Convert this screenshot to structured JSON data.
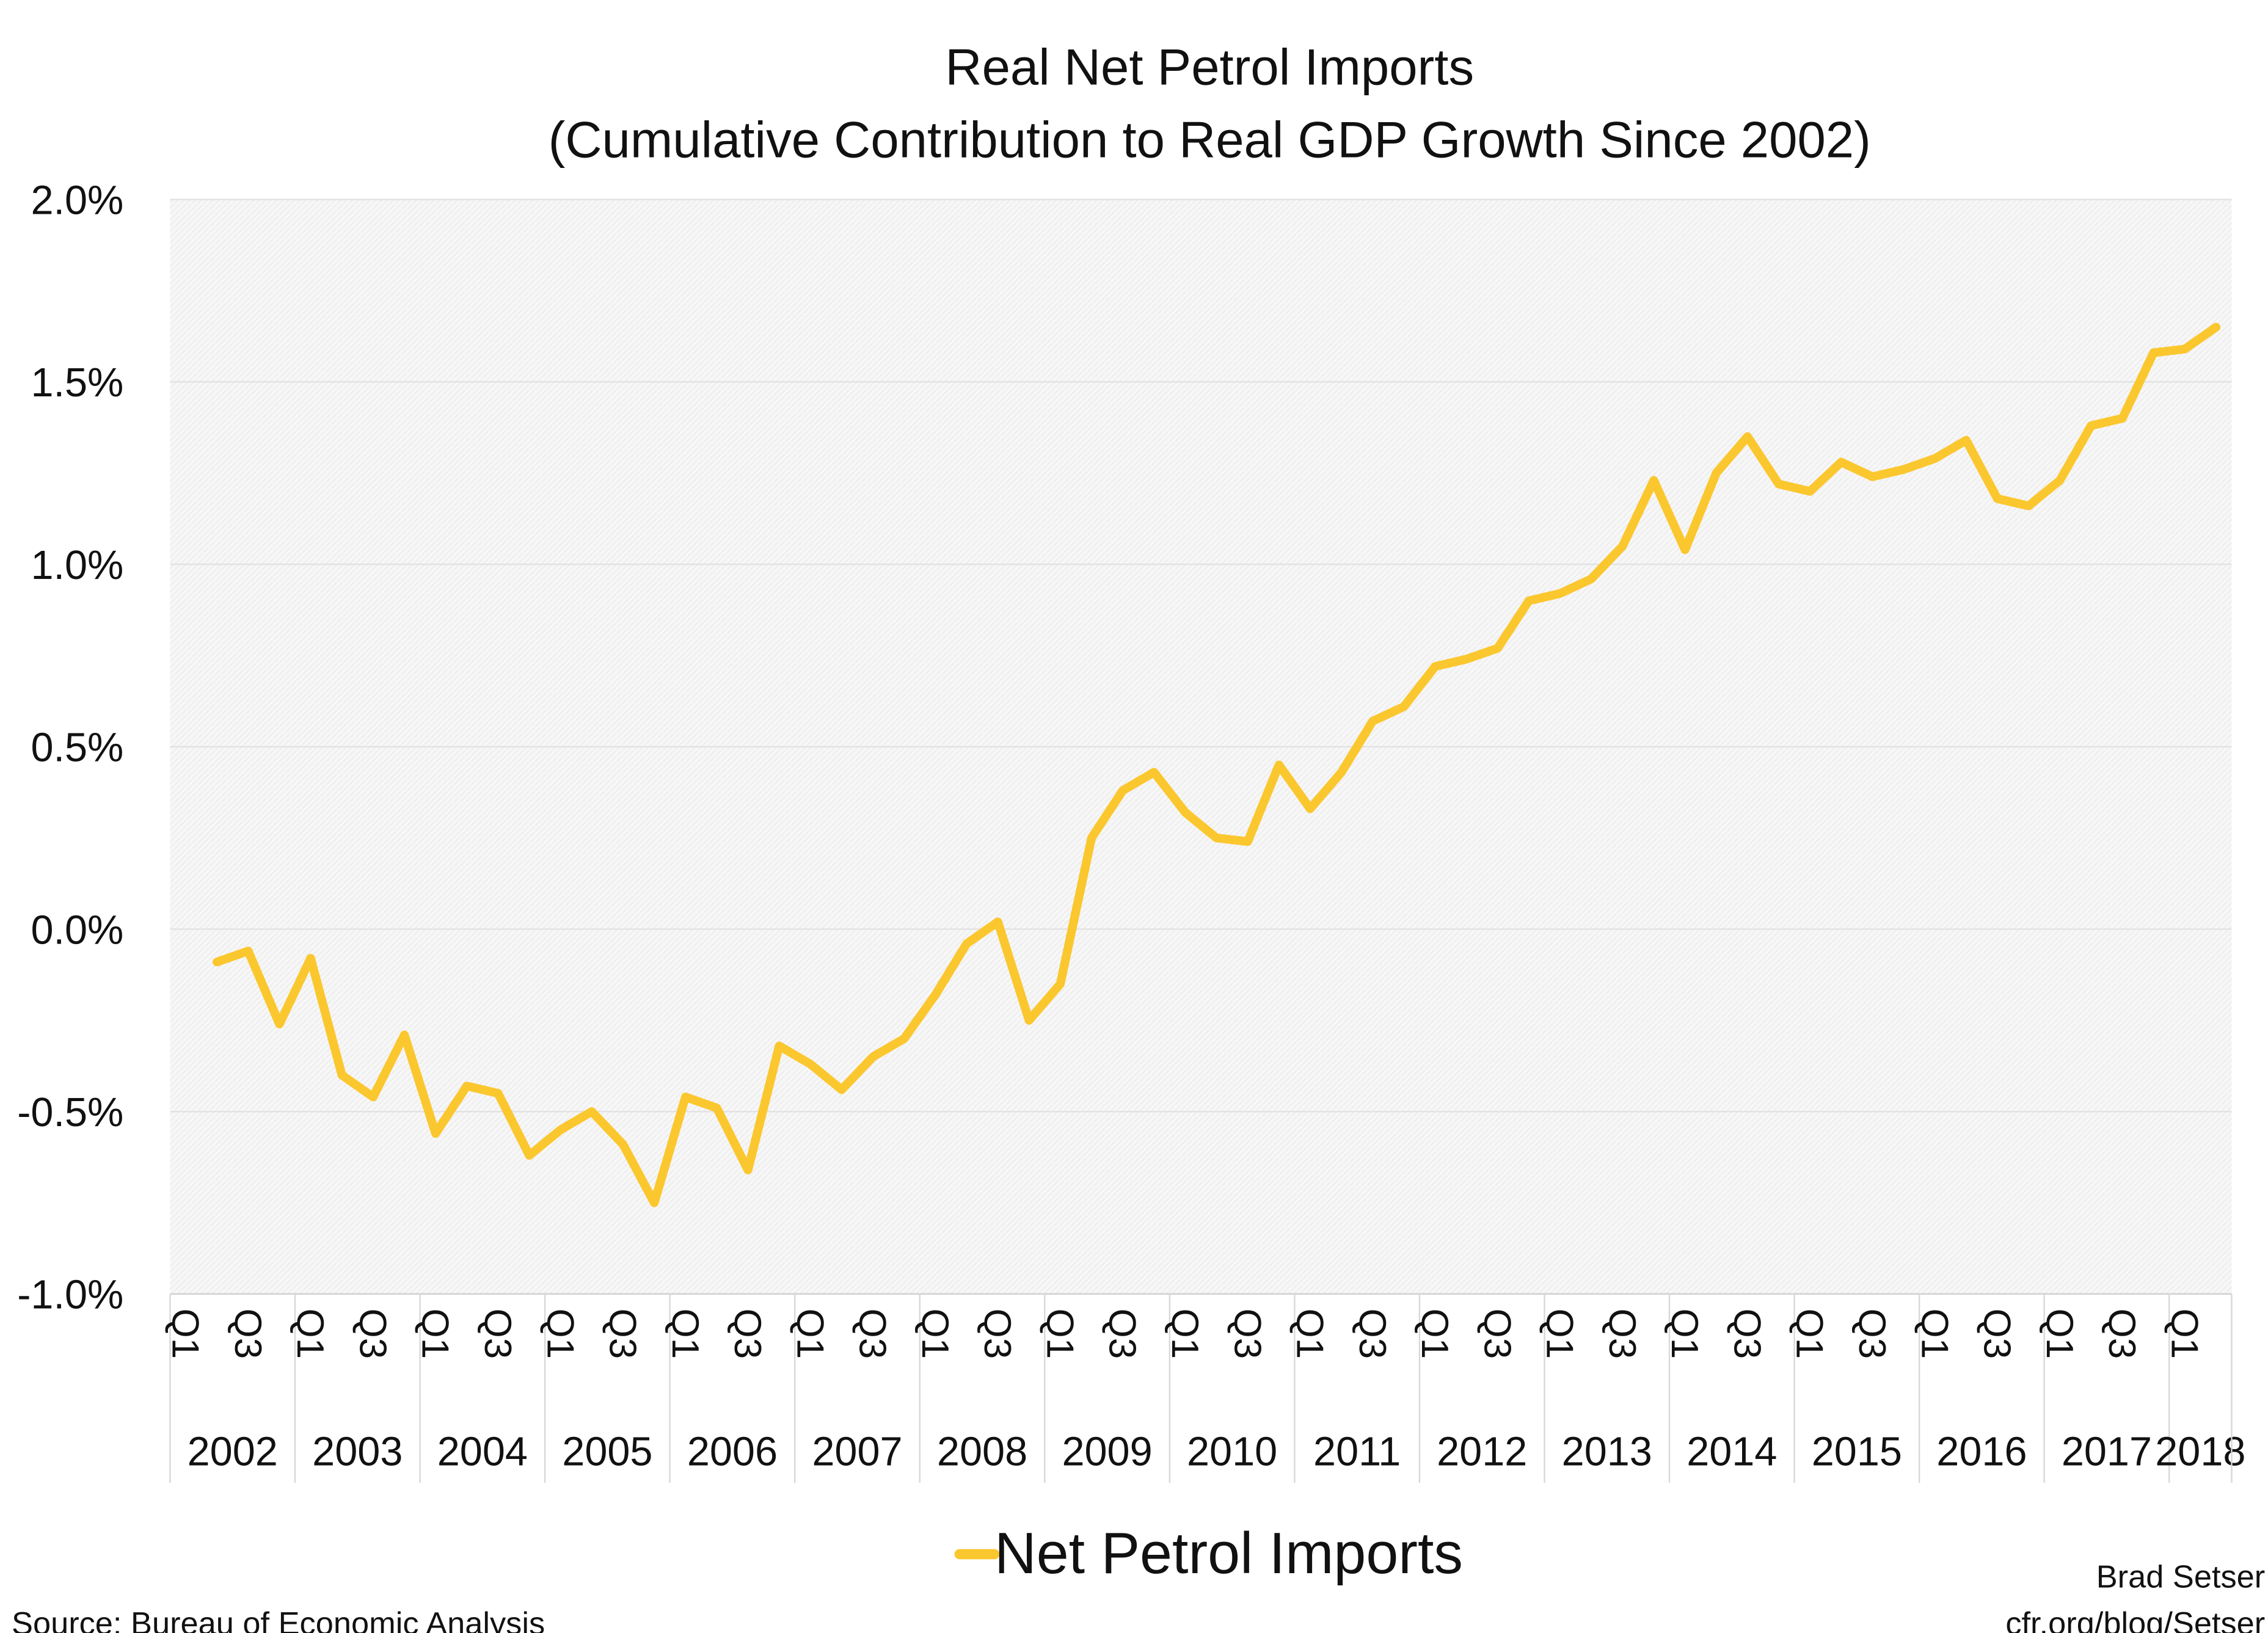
{
  "chart_data": {
    "type": "line",
    "title": "Real Net Petrol Imports",
    "subtitle": "(Cumulative Contribution to Real GDP Growth Since 2002)",
    "xlabel": "",
    "ylabel": "",
    "ylim": [
      -1.0,
      2.0
    ],
    "yticks": [
      "2.0%",
      "1.5%",
      "1.0%",
      "0.5%",
      "0.0%",
      "-0.5%",
      "-1.0%"
    ],
    "ytick_values": [
      2.0,
      1.5,
      1.0,
      0.5,
      0.0,
      -0.5,
      -1.0
    ],
    "grid": true,
    "legend_position": "bottom",
    "years": [
      "2002",
      "2003",
      "2004",
      "2005",
      "2006",
      "2007",
      "2008",
      "2009",
      "2010",
      "2011",
      "2012",
      "2013",
      "2014",
      "2015",
      "2016",
      "2017",
      "2018"
    ],
    "quarter_labels": [
      "Q1",
      "Q3"
    ],
    "x": [
      "2002Q1",
      "2002Q2",
      "2002Q3",
      "2002Q4",
      "2003Q1",
      "2003Q2",
      "2003Q3",
      "2003Q4",
      "2004Q1",
      "2004Q2",
      "2004Q3",
      "2004Q4",
      "2005Q1",
      "2005Q2",
      "2005Q3",
      "2005Q4",
      "2006Q1",
      "2006Q2",
      "2006Q3",
      "2006Q4",
      "2007Q1",
      "2007Q2",
      "2007Q3",
      "2007Q4",
      "2008Q1",
      "2008Q2",
      "2008Q3",
      "2008Q4",
      "2009Q1",
      "2009Q2",
      "2009Q3",
      "2009Q4",
      "2010Q1",
      "2010Q2",
      "2010Q3",
      "2010Q4",
      "2011Q1",
      "2011Q2",
      "2011Q3",
      "2011Q4",
      "2012Q1",
      "2012Q2",
      "2012Q3",
      "2012Q4",
      "2013Q1",
      "2013Q2",
      "2013Q3",
      "2013Q4",
      "2014Q1",
      "2014Q2",
      "2014Q3",
      "2014Q4",
      "2015Q1",
      "2015Q2",
      "2015Q3",
      "2015Q4",
      "2016Q1",
      "2016Q2",
      "2016Q3",
      "2016Q4",
      "2017Q1",
      "2017Q2",
      "2017Q3",
      "2017Q4",
      "2018Q1",
      "2018Q2"
    ],
    "series": [
      {
        "name": "Net Petrol Imports",
        "color": "#FBC72E",
        "values": [
          null,
          -0.09,
          -0.06,
          -0.26,
          -0.08,
          -0.4,
          -0.46,
          -0.29,
          -0.56,
          -0.43,
          -0.45,
          -0.62,
          -0.55,
          -0.5,
          -0.59,
          -0.75,
          -0.46,
          -0.49,
          -0.66,
          -0.32,
          -0.37,
          -0.44,
          -0.35,
          -0.3,
          -0.18,
          -0.04,
          0.02,
          -0.25,
          -0.15,
          0.25,
          0.38,
          0.43,
          0.32,
          0.25,
          0.24,
          0.45,
          0.33,
          0.43,
          0.57,
          0.61,
          0.72,
          0.74,
          0.77,
          0.9,
          0.92,
          0.96,
          1.05,
          1.23,
          1.04,
          1.25,
          1.35,
          1.22,
          1.2,
          1.28,
          1.24,
          1.26,
          1.29,
          1.34,
          1.18,
          1.16,
          1.23,
          1.38,
          1.4,
          1.58,
          1.59,
          1.65
        ]
      }
    ]
  },
  "footer": {
    "source": "Source: Bureau of Economic Analysis",
    "author": "Brad Setser",
    "url": "cfr.org/blog/Setser"
  }
}
